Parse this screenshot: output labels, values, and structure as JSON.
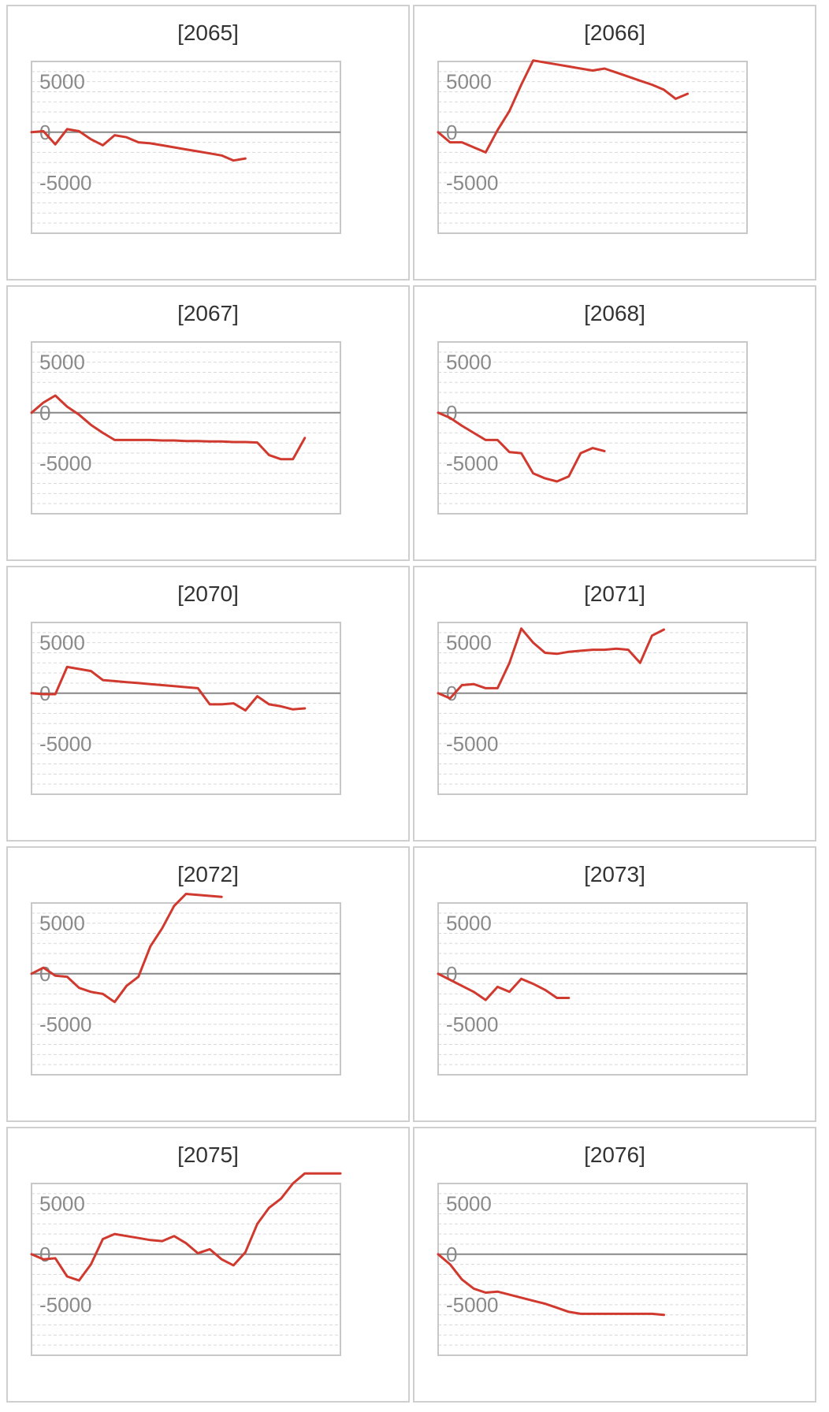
{
  "colors": {
    "line": "#d0392e",
    "zero_line": "#888888",
    "frame": "#c8c8c8",
    "grid": "#d9d9d9",
    "panel_border": "#cfcfcf"
  },
  "chart_data": [
    {
      "type": "line",
      "title": "[2065]",
      "x": [
        0,
        1,
        2,
        3,
        4,
        5,
        6,
        7,
        8,
        9,
        10,
        11,
        12,
        13,
        14,
        15,
        16,
        17,
        18
      ],
      "values": [
        0,
        100,
        -1200,
        300,
        100,
        -700,
        -1300,
        -300,
        -500,
        -1000,
        -1100,
        -1300,
        -1500,
        -1700,
        -1900,
        -2100,
        -2300,
        -2800,
        -2600
      ],
      "x_count": 27,
      "ylim": [
        -10000,
        7000
      ],
      "yticks": [
        5000,
        0,
        -5000
      ],
      "grid": true
    },
    {
      "type": "line",
      "title": "[2066]",
      "x": [
        0,
        1,
        2,
        3,
        4,
        5,
        6,
        7,
        8,
        9,
        10,
        11,
        12,
        13,
        14,
        15,
        16,
        17,
        18,
        19,
        20,
        21
      ],
      "values": [
        0,
        -1000,
        -1000,
        -1500,
        -2000,
        200,
        2100,
        4700,
        7100,
        6900,
        6700,
        6500,
        6300,
        6100,
        6300,
        5900,
        5500,
        5100,
        4700,
        4200,
        3300,
        3800
      ],
      "x_count": 27,
      "ylim": [
        -10000,
        7000
      ],
      "yticks": [
        5000,
        0,
        -5000
      ],
      "grid": true
    },
    {
      "type": "line",
      "title": "[2067]",
      "x": [
        0,
        1,
        2,
        3,
        4,
        5,
        6,
        7,
        8,
        9,
        10,
        11,
        12,
        13,
        14,
        15,
        16,
        17,
        18,
        19,
        20,
        21,
        22,
        23
      ],
      "values": [
        0,
        1000,
        1700,
        600,
        -200,
        -1200,
        -2000,
        -2700,
        -2700,
        -2700,
        -2700,
        -2750,
        -2750,
        -2800,
        -2800,
        -2850,
        -2850,
        -2900,
        -2900,
        -2950,
        -4200,
        -4600,
        -4600,
        -2500
      ],
      "x_count": 27,
      "ylim": [
        -10000,
        7000
      ],
      "yticks": [
        5000,
        0,
        -5000
      ],
      "grid": true
    },
    {
      "type": "line",
      "title": "[2068]",
      "x": [
        0,
        1,
        2,
        3,
        4,
        5,
        6,
        7,
        8,
        9,
        10,
        11,
        12,
        13,
        14
      ],
      "values": [
        0,
        -500,
        -1300,
        -2000,
        -2700,
        -2700,
        -3900,
        -4000,
        -6000,
        -6500,
        -6800,
        -6300,
        -4000,
        -3500,
        -3800
      ],
      "x_count": 27,
      "ylim": [
        -10000,
        7000
      ],
      "yticks": [
        5000,
        0,
        -5000
      ],
      "grid": true
    },
    {
      "type": "line",
      "title": "[2070]",
      "x": [
        0,
        1,
        2,
        3,
        4,
        5,
        6,
        7,
        8,
        9,
        10,
        11,
        12,
        13,
        14,
        15,
        16,
        17,
        18,
        19,
        20,
        21,
        22,
        23
      ],
      "values": [
        0,
        -100,
        -100,
        2600,
        2400,
        2200,
        1300,
        1200,
        1100,
        1000,
        900,
        800,
        700,
        600,
        500,
        -1100,
        -1100,
        -1000,
        -1700,
        -300,
        -1100,
        -1300,
        -1600,
        -1500
      ],
      "x_count": 27,
      "ylim": [
        -10000,
        7000
      ],
      "yticks": [
        5000,
        0,
        -5000
      ],
      "grid": true
    },
    {
      "type": "line",
      "title": "[2071]",
      "x": [
        0,
        1,
        2,
        3,
        4,
        5,
        6,
        7,
        8,
        9,
        10,
        11,
        12,
        13,
        14,
        15,
        16,
        17,
        18,
        19
      ],
      "values": [
        0,
        -500,
        800,
        900,
        500,
        500,
        3000,
        6400,
        5000,
        4000,
        3900,
        4100,
        4200,
        4300,
        4300,
        4400,
        4300,
        3000,
        5700,
        6300
      ],
      "x_count": 27,
      "ylim": [
        -10000,
        7000
      ],
      "yticks": [
        5000,
        0,
        -5000
      ],
      "grid": true
    },
    {
      "type": "line",
      "title": "[2072]",
      "x": [
        0,
        1,
        2,
        3,
        4,
        5,
        6,
        7,
        8,
        9,
        10,
        11,
        12,
        13,
        14,
        15,
        16
      ],
      "values": [
        0,
        600,
        -200,
        -300,
        -1400,
        -1800,
        -2000,
        -2800,
        -1200,
        -300,
        2700,
        4500,
        6700,
        7900,
        7800,
        7700,
        7600
      ],
      "x_count": 27,
      "ylim": [
        -10000,
        7000
      ],
      "yticks": [
        5000,
        0,
        -5000
      ],
      "grid": true
    },
    {
      "type": "line",
      "title": "[2073]",
      "x": [
        0,
        1,
        2,
        3,
        4,
        5,
        6,
        7,
        8,
        9,
        10,
        11
      ],
      "values": [
        0,
        -600,
        -1200,
        -1800,
        -2600,
        -1300,
        -1800,
        -500,
        -1000,
        -1600,
        -2400,
        -2400
      ],
      "x_count": 27,
      "ylim": [
        -10000,
        7000
      ],
      "yticks": [
        5000,
        0,
        -5000
      ],
      "grid": true
    },
    {
      "type": "line",
      "title": "[2075]",
      "x": [
        0,
        1,
        2,
        3,
        4,
        5,
        6,
        7,
        8,
        9,
        10,
        11,
        12,
        13,
        14,
        15,
        16,
        17,
        18,
        19,
        20,
        21,
        22,
        23,
        24,
        25,
        26
      ],
      "values": [
        0,
        -500,
        -400,
        -2200,
        -2600,
        -1000,
        1500,
        2000,
        1800,
        1600,
        1400,
        1300,
        1800,
        1100,
        100,
        500,
        -500,
        -1100,
        200,
        3000,
        4600,
        5500,
        7000,
        8000,
        8000,
        8000,
        8000
      ],
      "x_count": 27,
      "ylim": [
        -10000,
        7000
      ],
      "yticks": [
        5000,
        0,
        -5000
      ],
      "grid": true
    },
    {
      "type": "line",
      "title": "[2076]",
      "x": [
        0,
        1,
        2,
        3,
        4,
        5,
        6,
        7,
        8,
        9,
        10,
        11,
        12,
        13,
        14,
        15,
        16,
        17,
        18,
        19
      ],
      "values": [
        0,
        -1000,
        -2500,
        -3400,
        -3800,
        -3700,
        -4000,
        -4300,
        -4600,
        -4900,
        -5300,
        -5700,
        -5900,
        -5900,
        -5900,
        -5900,
        -5900,
        -5900,
        -5900,
        -6000
      ],
      "x_count": 27,
      "ylim": [
        -10000,
        7000
      ],
      "yticks": [
        5000,
        0,
        -5000
      ],
      "grid": true
    }
  ]
}
